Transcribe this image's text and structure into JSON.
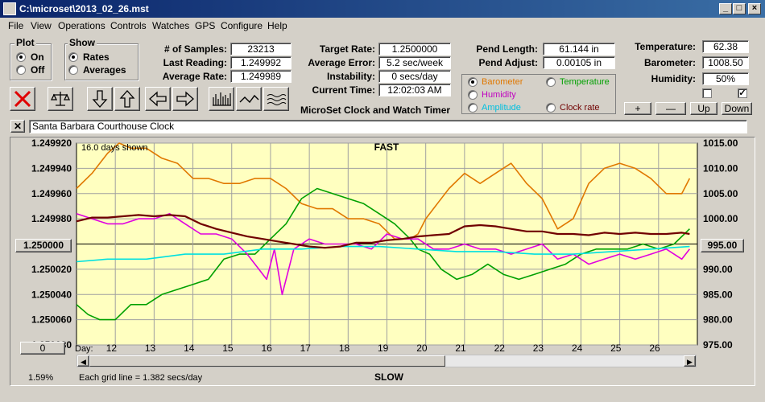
{
  "window": {
    "title": "C:\\microset\\2013_02_26.mst"
  },
  "menu": [
    "File",
    "View",
    "Operations",
    "Controls",
    "Watches",
    "GPS",
    "Configure",
    "Help"
  ],
  "plot": {
    "label": "Plot",
    "on": "On",
    "off": "Off"
  },
  "show": {
    "label": "Show",
    "rates": "Rates",
    "averages": "Averages"
  },
  "stats": {
    "samples_label": "# of Samples:",
    "samples": "23213",
    "last_label": "Last Reading:",
    "last": "1.249992",
    "avg_label": "Average Rate:",
    "avg": "1.249989",
    "target_label": "Target Rate:",
    "target": "1.2500000",
    "avgerr_label": "Average Error:",
    "avgerr": "5.2 sec/week",
    "instab_label": "Instability:",
    "instab": "0 secs/day",
    "time_label": "Current Time:",
    "time": "12:02:03 AM",
    "pendlen_label": "Pend Length:",
    "pendlen": "61.144 in",
    "pendadj_label": "Pend Adjust:",
    "pendadj": "0.00105 in",
    "temp_label": "Temperature:",
    "temp": "62.38",
    "baro_label": "Barometer:",
    "baro": "1008.50",
    "humid_label": "Humidity:",
    "humid": "50%"
  },
  "app_caption": "MicroSet Clock and Watch Timer",
  "series_select": {
    "barometer": "Barometer",
    "temperature": "Temperature",
    "humidity": "Humidity",
    "amplitude": "Amplitude",
    "clock_rate": "Clock rate"
  },
  "right_buttons": {
    "plus": "+",
    "minus": "—",
    "up": "Up",
    "down": "Down"
  },
  "clock_name": "Santa Barbara Courthouse Clock",
  "close_x": "✕",
  "colors": {
    "barometer": "#e07800",
    "temperature": "#00a000",
    "humidity": "#e000e0",
    "amplitude": "#00e0e0",
    "clock_rate": "#700000",
    "plot_bg": "#ffffc0"
  },
  "chart_data": {
    "type": "line",
    "top_left_note": "16.0 days shown",
    "top_label": "FAST",
    "bottom_label": "SLOW",
    "grid_note": "Each grid line = 1.382 secs/day",
    "bottom_left_pct": "1.59%",
    "left_button": "0",
    "x_prefix": "Day:",
    "x_ticks": [
      "12",
      "13",
      "14",
      "15",
      "16",
      "17",
      "18",
      "19",
      "20",
      "21",
      "22",
      "23",
      "24",
      "25",
      "26"
    ],
    "left_ticks": [
      "1.249920",
      "1.249940",
      "1.249960",
      "1.249980",
      "1.250000",
      "1.250020",
      "1.250040",
      "1.250060",
      "1.250080"
    ],
    "left_center_button": "1.250000",
    "right_ticks": [
      "1015.00",
      "1010.00",
      "1005.00",
      "1000.00",
      "995.00",
      "990.00",
      "985.00",
      "980.00",
      "975.00"
    ],
    "right_center_button": "995.00",
    "ylim_left": [
      1.24992,
      1.25008
    ],
    "ylim_right": [
      975,
      1015
    ],
    "grid": true,
    "x_range": [
      11.2,
      27.2
    ],
    "series": [
      {
        "name": "Barometer",
        "axis": "right",
        "color": "#e07800",
        "x": [
          11.2,
          11.6,
          12,
          12.3,
          12.6,
          13,
          13.4,
          13.8,
          14.2,
          14.6,
          15,
          15.4,
          15.8,
          16.2,
          16.6,
          17,
          17.4,
          17.8,
          18.2,
          18.6,
          19,
          19.4,
          19.8,
          20,
          20.2,
          20.5,
          20.8,
          21.2,
          21.6,
          22,
          22.4,
          22.8,
          23.2,
          23.6,
          24,
          24.4,
          24.8,
          25.2,
          25.6,
          26,
          26.4,
          26.8,
          27
        ],
        "y": [
          1006,
          1009,
          1013,
          1015,
          1014,
          1014,
          1012,
          1011,
          1008,
          1008,
          1007,
          1007,
          1008,
          1008,
          1006,
          1003,
          1002,
          1002,
          1000,
          1000,
          999,
          996,
          996,
          997,
          1000,
          1003,
          1006,
          1009,
          1007,
          1009,
          1011,
          1007,
          1004,
          998,
          1000,
          1007,
          1010,
          1011,
          1010,
          1008,
          1005,
          1005,
          1008
        ]
      },
      {
        "name": "Temperature",
        "axis": "right",
        "color": "#00a000",
        "x": [
          11.2,
          11.5,
          11.8,
          12.2,
          12.6,
          13,
          13.4,
          13.8,
          14.2,
          14.6,
          15,
          15.4,
          15.8,
          16.2,
          16.6,
          17,
          17.4,
          17.8,
          18.2,
          18.6,
          19,
          19.4,
          19.8,
          20,
          20.3,
          20.6,
          21,
          21.4,
          21.8,
          22.2,
          22.6,
          23,
          23.4,
          23.8,
          24.2,
          24.6,
          25,
          25.4,
          25.8,
          26.2,
          26.6,
          27
        ],
        "y": [
          983,
          981,
          980,
          980,
          983,
          983,
          985,
          986,
          987,
          988,
          992,
          993,
          993,
          996,
          999,
          1004,
          1006,
          1005,
          1004,
          1003,
          1001,
          999,
          996,
          994,
          993,
          990,
          988,
          989,
          991,
          989,
          988,
          989,
          990,
          991,
          993,
          994,
          994,
          994,
          995,
          994,
          995,
          998
        ]
      },
      {
        "name": "Humidity",
        "axis": "right",
        "color": "#e000e0",
        "x": [
          11.2,
          11.6,
          12,
          12.4,
          12.8,
          13.2,
          13.6,
          14,
          14.4,
          14.8,
          15.2,
          15.6,
          15.9,
          16.1,
          16.3,
          16.5,
          16.8,
          17.2,
          17.6,
          18,
          18.4,
          18.8,
          19.2,
          19.6,
          20,
          20.4,
          20.8,
          21.2,
          21.6,
          22,
          22.4,
          22.8,
          23.2,
          23.6,
          24,
          24.4,
          24.8,
          25.2,
          25.6,
          26,
          26.4,
          26.8,
          27
        ],
        "y": [
          1001,
          1000,
          999,
          999,
          1000,
          1000,
          1001,
          999,
          997,
          997,
          996,
          993,
          990,
          988,
          994,
          985,
          994,
          996,
          995,
          995,
          995,
          994,
          997,
          996,
          996,
          994,
          994,
          995,
          994,
          994,
          993,
          994,
          995,
          992,
          993,
          991,
          992,
          993,
          992,
          993,
          994,
          992,
          994
        ]
      },
      {
        "name": "Amplitude",
        "axis": "right",
        "color": "#00e0e0",
        "x": [
          11.2,
          12,
          13,
          14,
          15,
          16,
          17,
          18,
          19,
          20,
          21,
          22,
          23,
          24,
          25,
          26,
          27
        ],
        "y": [
          991.5,
          992,
          992,
          993,
          993,
          994,
          994,
          994.5,
          994.5,
          994,
          993.5,
          993.5,
          993,
          993,
          993.5,
          994,
          994.5
        ]
      },
      {
        "name": "Clock rate",
        "axis": "left",
        "color": "#700000",
        "x": [
          11.2,
          11.6,
          12,
          12.4,
          12.8,
          13.2,
          13.6,
          14,
          14.4,
          14.8,
          15.2,
          15.6,
          16,
          16.4,
          16.8,
          17.2,
          17.6,
          18,
          18.4,
          18.8,
          19.2,
          19.6,
          20,
          20.4,
          20.8,
          21.2,
          21.6,
          22,
          22.4,
          22.8,
          23.2,
          23.6,
          24,
          24.4,
          24.8,
          25.2,
          25.6,
          26,
          26.4,
          26.8,
          27
        ],
        "y": [
          1.249982,
          1.249979,
          1.249979,
          1.249978,
          1.249977,
          1.249978,
          1.249977,
          1.249978,
          1.249984,
          1.249988,
          1.249991,
          1.249994,
          1.249996,
          1.249998,
          1.25,
          1.250002,
          1.250003,
          1.250002,
          1.249999,
          1.249999,
          1.249997,
          1.249996,
          1.249994,
          1.249993,
          1.249992,
          1.249986,
          1.249985,
          1.249986,
          1.249988,
          1.24999,
          1.24999,
          1.249992,
          1.249992,
          1.249993,
          1.249991,
          1.249992,
          1.249991,
          1.249992,
          1.249992,
          1.249991,
          1.249992
        ]
      }
    ]
  }
}
